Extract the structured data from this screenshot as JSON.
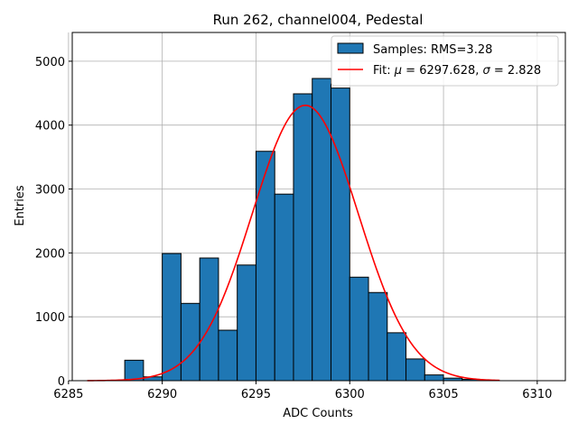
{
  "chart_data": {
    "type": "bar",
    "title": "Run 262, channel004, Pedestal",
    "xlabel": "ADC Counts",
    "ylabel": "Entries",
    "xlim": [
      6285.2,
      6311.5
    ],
    "ylim": [
      0,
      5450
    ],
    "xticks": [
      6285,
      6290,
      6295,
      6300,
      6305,
      6310
    ],
    "yticks": [
      0,
      1000,
      2000,
      3000,
      4000,
      5000
    ],
    "grid": true,
    "legend_position": "top-right",
    "bar_color": "#1f77b4",
    "fit_color": "#ff0000",
    "histogram": {
      "name": "Samples: RMS=3.28",
      "bin_edges": [
        6288,
        6289,
        6290,
        6291,
        6292,
        6293,
        6294,
        6295,
        6296,
        6297,
        6298,
        6299,
        6300,
        6301,
        6302,
        6303,
        6304,
        6305,
        6306,
        6307
      ],
      "values": [
        320,
        60,
        1990,
        1210,
        1920,
        790,
        1810,
        3590,
        2920,
        4490,
        4730,
        4580,
        1620,
        1380,
        750,
        340,
        90,
        40,
        20
      ]
    },
    "fit": {
      "name_prefix": "Fit: ",
      "mu_symbol": "μ",
      "mu_value": " = 6297.628, ",
      "sigma_symbol": "σ",
      "sigma_value": " = 2.828",
      "mu": 6297.628,
      "sigma": 2.828,
      "peak": 4310,
      "x_range": [
        6286,
        6308
      ]
    }
  }
}
